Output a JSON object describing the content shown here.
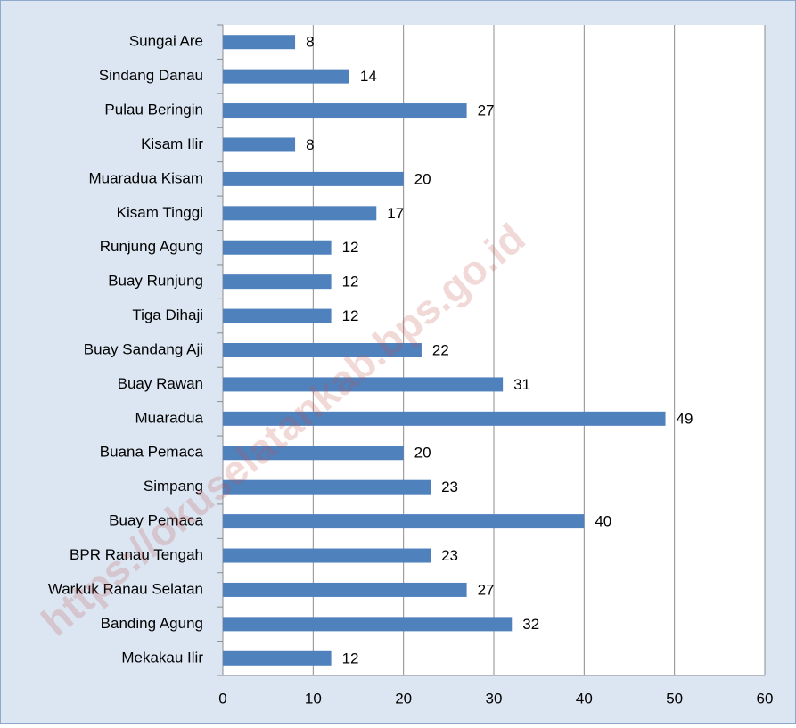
{
  "chart_data": {
    "type": "bar",
    "orientation": "horizontal",
    "categories": [
      "Sungai Are",
      "Sindang Danau",
      "Pulau Beringin",
      "Kisam Ilir",
      "Muaradua Kisam",
      "Kisam Tinggi",
      "Runjung Agung",
      "Buay Runjung",
      "Tiga Dihaji",
      "Buay Sandang Aji",
      "Buay Rawan",
      "Muaradua",
      "Buana Pemaca",
      "Simpang",
      "Buay Pemaca",
      "BPR Ranau Tengah",
      "Warkuk Ranau Selatan",
      "Banding Agung",
      "Mekakau Ilir"
    ],
    "values": [
      8,
      14,
      27,
      8,
      20,
      17,
      12,
      12,
      12,
      22,
      31,
      49,
      20,
      23,
      40,
      23,
      27,
      32,
      12
    ],
    "color": "#4f81bd",
    "xlim": [
      0,
      60
    ],
    "xticks": [
      0,
      10,
      20,
      30,
      40,
      50,
      60
    ],
    "grid": true,
    "watermark": "https://okuselatankab.bps.go.id"
  }
}
